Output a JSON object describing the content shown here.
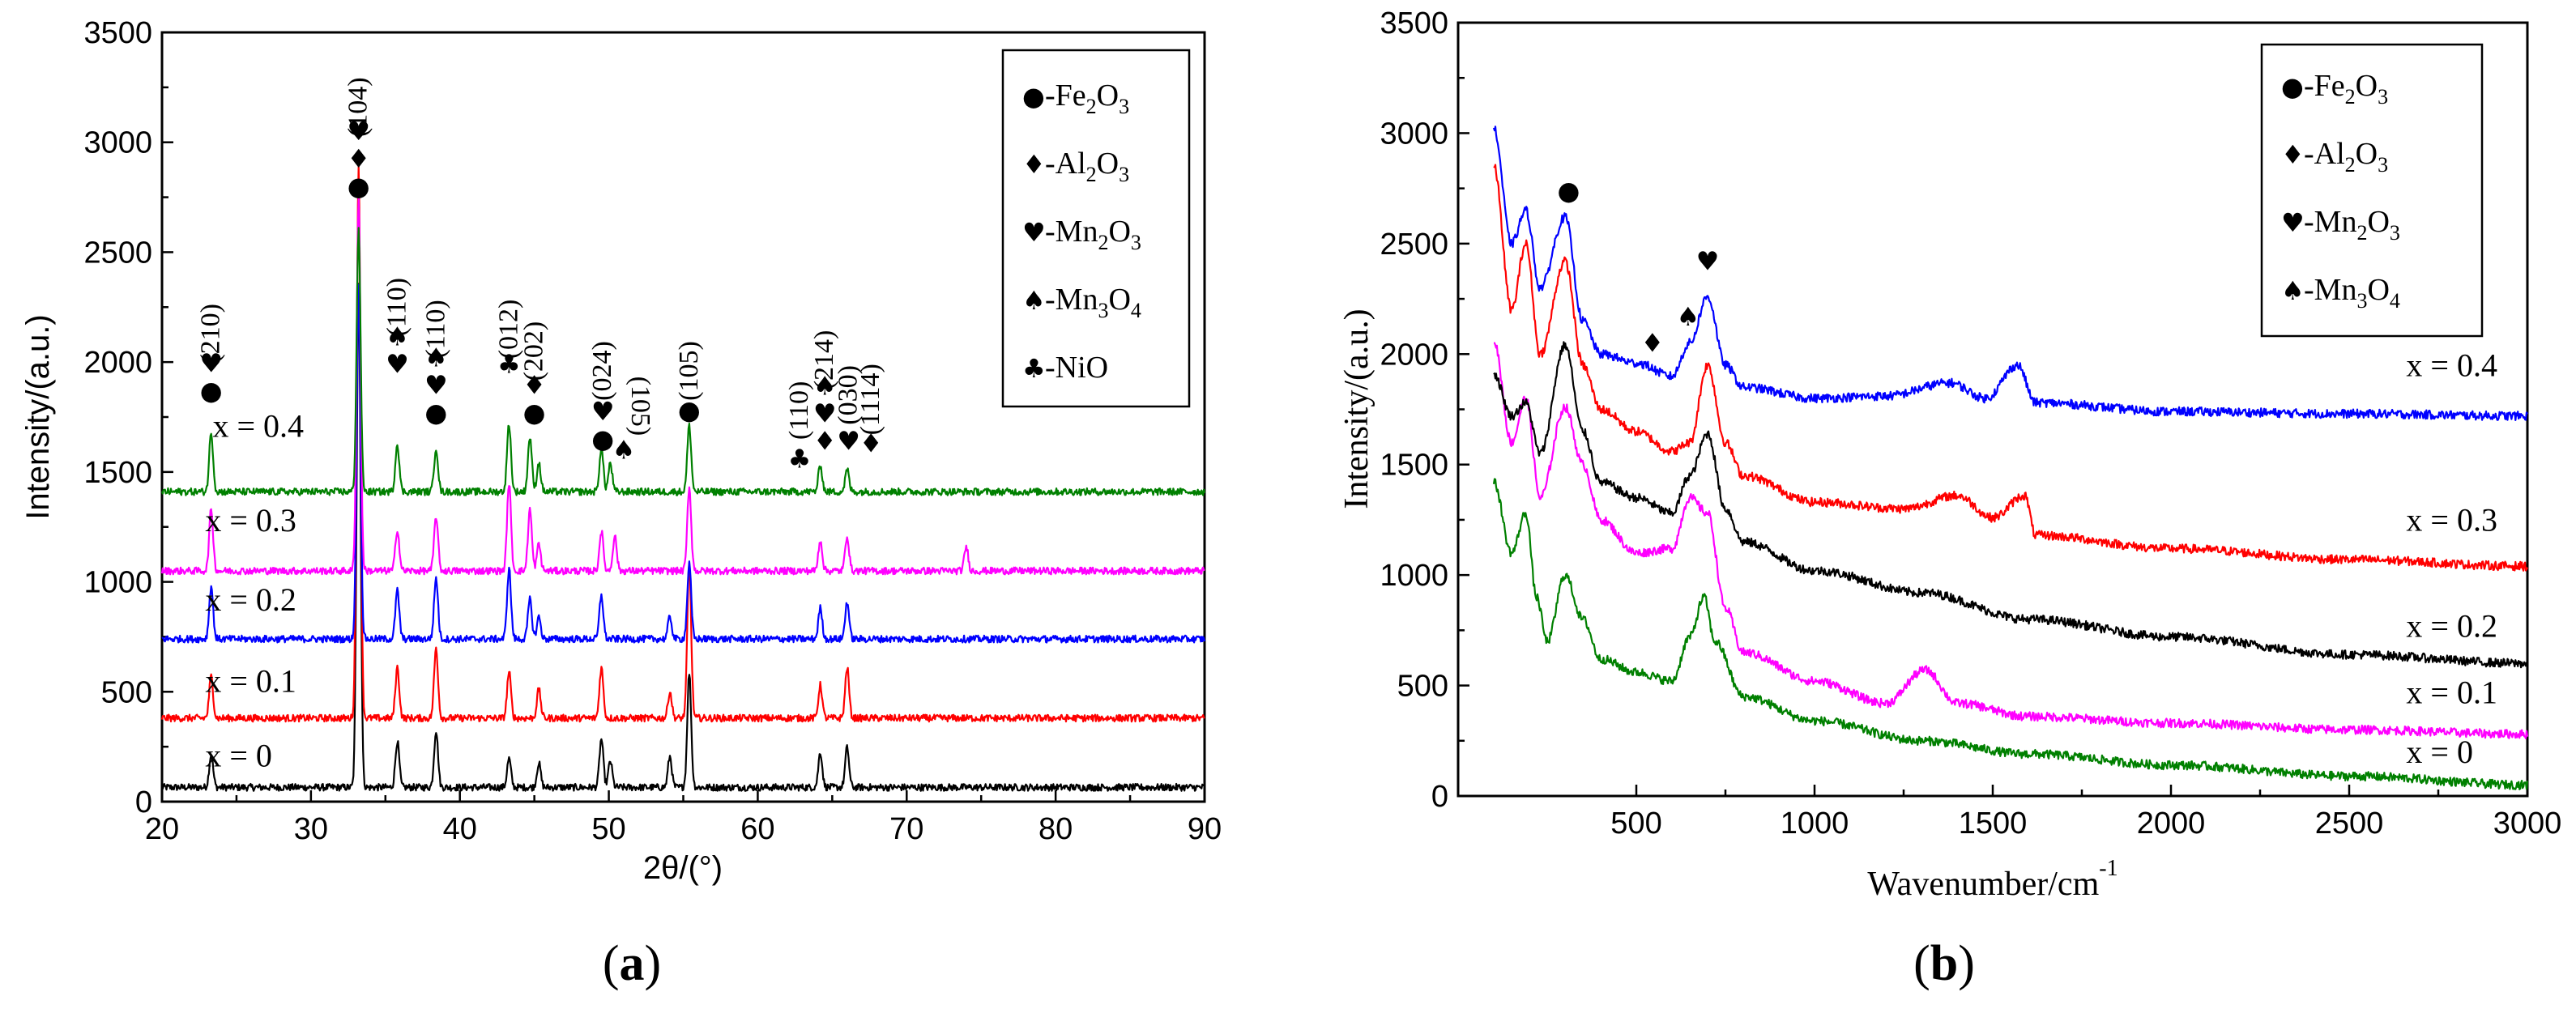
{
  "panels": [
    {
      "caption_open": "(",
      "caption": "a",
      "caption_close": ")"
    },
    {
      "caption_open": "(",
      "caption": "b",
      "caption_close": ")"
    }
  ],
  "chart_data": [
    {
      "type": "line",
      "xlabel": "2θ/(°)",
      "ylabel": "Intensity/(a.u.)",
      "xlim": [
        20,
        90
      ],
      "ylim": [
        0,
        3500
      ],
      "xticks": [
        20,
        30,
        40,
        50,
        60,
        70,
        80,
        90
      ],
      "yticks": [
        0,
        500,
        1000,
        1500,
        2000,
        2500,
        3000,
        3500
      ],
      "legend_position": "top-right",
      "legend": [
        {
          "symbol": "●",
          "text": "-Fe",
          "sub1": "2",
          "mid": "O",
          "sub2": "3"
        },
        {
          "symbol": "♦",
          "text": "-Al",
          "sub1": "2",
          "mid": "O",
          "sub2": "3"
        },
        {
          "symbol": "♥",
          "text": "-Mn",
          "sub1": "2",
          "mid": "O",
          "sub2": "3"
        },
        {
          "symbol": "♠",
          "text": "-Mn",
          "sub1": "3",
          "mid": "O",
          "sub2": "4"
        },
        {
          "symbol": "♣",
          "text": "-NiO",
          "sub1": "",
          "mid": "",
          "sub2": ""
        }
      ],
      "series": [
        {
          "name": "x = 0",
          "color": "#000000",
          "baseline": 65,
          "label_x": 22.9,
          "label_y": 160,
          "peaks": [
            [
              23.3,
              150
            ],
            [
              33.2,
              2300
            ],
            [
              35.8,
              210
            ],
            [
              38.4,
              260
            ],
            [
              43.3,
              130
            ],
            [
              45.3,
              110
            ],
            [
              49.5,
              220
            ],
            [
              50.1,
              120
            ],
            [
              54.1,
              140
            ],
            [
              55.4,
              520
            ],
            [
              64.2,
              160
            ],
            [
              66.0,
              180
            ]
          ]
        },
        {
          "name": "x = 0.1",
          "color": "#ff0000",
          "baseline": 380,
          "label_x": 22.9,
          "label_y": 500,
          "peaks": [
            [
              23.3,
              190
            ],
            [
              33.2,
              2500
            ],
            [
              35.8,
              230
            ],
            [
              38.4,
              320
            ],
            [
              43.3,
              210
            ],
            [
              45.3,
              130
            ],
            [
              49.5,
              230
            ],
            [
              54.1,
              120
            ],
            [
              55.4,
              700
            ],
            [
              64.2,
              150
            ],
            [
              66.0,
              230
            ]
          ]
        },
        {
          "name": "x = 0.2",
          "color": "#0000ff",
          "baseline": 740,
          "label_x": 22.9,
          "label_y": 870,
          "peaks": [
            [
              23.3,
              240
            ],
            [
              33.2,
              1600
            ],
            [
              35.8,
              220
            ],
            [
              38.4,
              280
            ],
            [
              43.3,
              320
            ],
            [
              44.7,
              180
            ],
            [
              45.3,
              100
            ],
            [
              49.5,
              200
            ],
            [
              54.1,
              100
            ],
            [
              55.4,
              340
            ],
            [
              64.2,
              140
            ],
            [
              66.0,
              170
            ]
          ]
        },
        {
          "name": "x = 0.3",
          "color": "#ff00ff",
          "baseline": 1050,
          "label_x": 22.9,
          "label_y": 1230,
          "peaks": [
            [
              23.3,
              280
            ],
            [
              33.2,
              1700
            ],
            [
              35.8,
              190
            ],
            [
              38.4,
              250
            ],
            [
              43.3,
              400
            ],
            [
              44.7,
              280
            ],
            [
              45.3,
              120
            ],
            [
              49.5,
              180
            ],
            [
              50.4,
              160
            ],
            [
              55.4,
              380
            ],
            [
              64.2,
              140
            ],
            [
              66.0,
              160
            ],
            [
              74.0,
              110
            ]
          ]
        },
        {
          "name": "x = 0.4",
          "color": "#008000",
          "baseline": 1410,
          "label_x": 23.4,
          "label_y": 1660,
          "peaks": [
            [
              23.3,
              270
            ],
            [
              33.2,
              1200
            ],
            [
              35.8,
              220
            ],
            [
              38.4,
              200
            ],
            [
              43.3,
              310
            ],
            [
              44.7,
              250
            ],
            [
              45.3,
              130
            ],
            [
              49.5,
              200
            ],
            [
              50.1,
              130
            ],
            [
              55.4,
              300
            ],
            [
              64.2,
              120
            ],
            [
              66.0,
              100
            ]
          ]
        }
      ],
      "annotations": [
        {
          "x": 23.3,
          "y": 1830,
          "symbols": [
            "●",
            "♥"
          ],
          "label": "(210)",
          "label_y": 2130
        },
        {
          "x": 33.2,
          "y": 2760,
          "symbols": [
            "●",
            "♦",
            "♥"
          ],
          "label": "(104)",
          "label_y": 3160
        },
        {
          "x": 35.8,
          "y": 1950,
          "symbols": [
            "♥",
            "♠"
          ],
          "label": "(110)",
          "label_y": 2250
        },
        {
          "x": 38.4,
          "y": 1730,
          "symbols": [
            "●",
            "♥",
            "♠"
          ],
          "label": "(110)",
          "label_y": 2150
        },
        {
          "x": 43.3,
          "y": 1950,
          "symbols": [
            "♣"
          ],
          "label": "(012)",
          "label_y": 2150
        },
        {
          "x": 45.0,
          "y": 1730,
          "symbols": [
            "●",
            "♦"
          ],
          "label": "(202)",
          "label_y": 2050
        },
        {
          "x": 49.6,
          "y": 1610,
          "symbols": [
            "●",
            "♥"
          ],
          "label": "(024)",
          "label_y": 1960
        },
        {
          "x": 51.0,
          "y": 1560,
          "symbols": [
            "♠"
          ],
          "label": "(105)",
          "label_y": 1800,
          "rotated": true
        },
        {
          "x": 55.4,
          "y": 1740,
          "symbols": [
            "●"
          ],
          "label": "(105)",
          "label_y": 1960
        },
        {
          "x": 62.8,
          "y": 1520,
          "symbols": [
            "♣"
          ],
          "label": "(110)",
          "label_y": 1780
        },
        {
          "x": 64.5,
          "y": 1600,
          "symbols": [
            "♦",
            "♥",
            "♠"
          ],
          "label": "(214)",
          "label_y": 2010
        },
        {
          "x": 66.1,
          "y": 1600,
          "symbols": [
            "♥"
          ],
          "label": "(030)",
          "label_y": 1850
        },
        {
          "x": 67.6,
          "y": 1590,
          "symbols": [
            "♦"
          ],
          "label": "(1114)",
          "label_y": 1830
        }
      ]
    },
    {
      "type": "line",
      "xlabel": "Wavenumber/cm",
      "xlabel_sup": "-1",
      "ylabel": "Intensity/(a.u.)",
      "xlim": [
        0,
        3000
      ],
      "ylim": [
        0,
        3500
      ],
      "xticks": [
        500,
        1000,
        1500,
        2000,
        2500,
        3000
      ],
      "yticks": [
        0,
        500,
        1000,
        1500,
        2000,
        2500,
        3000,
        3500
      ],
      "legend_position": "top-right",
      "legend": [
        {
          "symbol": "●",
          "text": "-Fe",
          "sub1": "2",
          "mid": "O",
          "sub2": "3"
        },
        {
          "symbol": "♦",
          "text": "-Al",
          "sub1": "2",
          "mid": "O",
          "sub2": "3"
        },
        {
          "symbol": "♥",
          "text": "-Mn",
          "sub1": "2",
          "mid": "O",
          "sub2": "3"
        },
        {
          "symbol": "♠",
          "text": "-Mn",
          "sub1": "3",
          "mid": "O",
          "sub2": "4"
        }
      ],
      "series": [
        {
          "name": "x = 0",
          "color": "#008000",
          "label_x": 2660,
          "label_y": 150,
          "points": [
            [
              100,
              1420
            ],
            [
              150,
              1100
            ],
            [
              190,
              1280
            ],
            [
              220,
              900
            ],
            [
              250,
              700
            ],
            [
              300,
              1000
            ],
            [
              350,
              800
            ],
            [
              400,
              620
            ],
            [
              500,
              560
            ],
            [
              600,
              520
            ],
            [
              650,
              720
            ],
            [
              690,
              900
            ],
            [
              720,
              700
            ],
            [
              800,
              450
            ],
            [
              1000,
              340
            ],
            [
              1300,
              250
            ],
            [
              1600,
              190
            ],
            [
              2000,
              140
            ],
            [
              2500,
              90
            ],
            [
              3000,
              50
            ]
          ]
        },
        {
          "name": "x = 0.1",
          "color": "#ff00ff",
          "label_x": 2660,
          "label_y": 420,
          "points": [
            [
              100,
              2060
            ],
            [
              150,
              1600
            ],
            [
              190,
              1800
            ],
            [
              230,
              1350
            ],
            [
              300,
              1760
            ],
            [
              350,
              1500
            ],
            [
              400,
              1250
            ],
            [
              500,
              1100
            ],
            [
              600,
              1120
            ],
            [
              650,
              1350
            ],
            [
              700,
              1280
            ],
            [
              750,
              850
            ],
            [
              800,
              650
            ],
            [
              1000,
              520
            ],
            [
              1200,
              420
            ],
            [
              1310,
              570
            ],
            [
              1400,
              420
            ],
            [
              1600,
              360
            ],
            [
              2000,
              330
            ],
            [
              2500,
              300
            ],
            [
              3000,
              280
            ]
          ]
        },
        {
          "name": "x = 0.2",
          "color": "#000000",
          "label_x": 2660,
          "label_y": 720,
          "points": [
            [
              100,
              1910
            ],
            [
              150,
              1720
            ],
            [
              190,
              1780
            ],
            [
              230,
              1550
            ],
            [
              300,
              2040
            ],
            [
              350,
              1650
            ],
            [
              400,
              1420
            ],
            [
              500,
              1350
            ],
            [
              600,
              1280
            ],
            [
              650,
              1450
            ],
            [
              700,
              1640
            ],
            [
              750,
              1300
            ],
            [
              800,
              1150
            ],
            [
              1000,
              1020
            ],
            [
              1300,
              920
            ],
            [
              1600,
              800
            ],
            [
              2000,
              720
            ],
            [
              2500,
              640
            ],
            [
              3000,
              600
            ]
          ]
        },
        {
          "name": "x = 0.3",
          "color": "#ff0000",
          "label_x": 2660,
          "label_y": 1200,
          "points": [
            [
              100,
              2850
            ],
            [
              150,
              2200
            ],
            [
              190,
              2500
            ],
            [
              230,
              2000
            ],
            [
              300,
              2420
            ],
            [
              350,
              1950
            ],
            [
              400,
              1750
            ],
            [
              500,
              1650
            ],
            [
              600,
              1560
            ],
            [
              650,
              1600
            ],
            [
              700,
              1950
            ],
            [
              750,
              1600
            ],
            [
              800,
              1450
            ],
            [
              1000,
              1330
            ],
            [
              1250,
              1300
            ],
            [
              1400,
              1360
            ],
            [
              1500,
              1260
            ],
            [
              1590,
              1360
            ],
            [
              1620,
              1180
            ],
            [
              2000,
              1120
            ],
            [
              2500,
              1070
            ],
            [
              3000,
              1040
            ]
          ]
        },
        {
          "name": "x = 0.4",
          "color": "#0000ff",
          "label_x": 2660,
          "label_y": 1900,
          "points": [
            [
              100,
              3020
            ],
            [
              150,
              2500
            ],
            [
              190,
              2650
            ],
            [
              230,
              2300
            ],
            [
              300,
              2620
            ],
            [
              350,
              2150
            ],
            [
              400,
              2000
            ],
            [
              500,
              1960
            ],
            [
              600,
              1900
            ],
            [
              650,
              2050
            ],
            [
              700,
              2260
            ],
            [
              750,
              1950
            ],
            [
              800,
              1850
            ],
            [
              1000,
              1800
            ],
            [
              1200,
              1810
            ],
            [
              1380,
              1870
            ],
            [
              1480,
              1800
            ],
            [
              1570,
              1950
            ],
            [
              1620,
              1780
            ],
            [
              2000,
              1740
            ],
            [
              2500,
              1730
            ],
            [
              3000,
              1720
            ]
          ]
        }
      ],
      "annotations": [
        {
          "x": 310,
          "y": 2700,
          "symbols": [
            "●"
          ]
        },
        {
          "x": 545,
          "y": 2010,
          "symbols": [
            "♦"
          ]
        },
        {
          "x": 645,
          "y": 2130,
          "symbols": [
            "♠"
          ]
        },
        {
          "x": 700,
          "y": 2380,
          "symbols": [
            "♥"
          ]
        }
      ]
    }
  ]
}
